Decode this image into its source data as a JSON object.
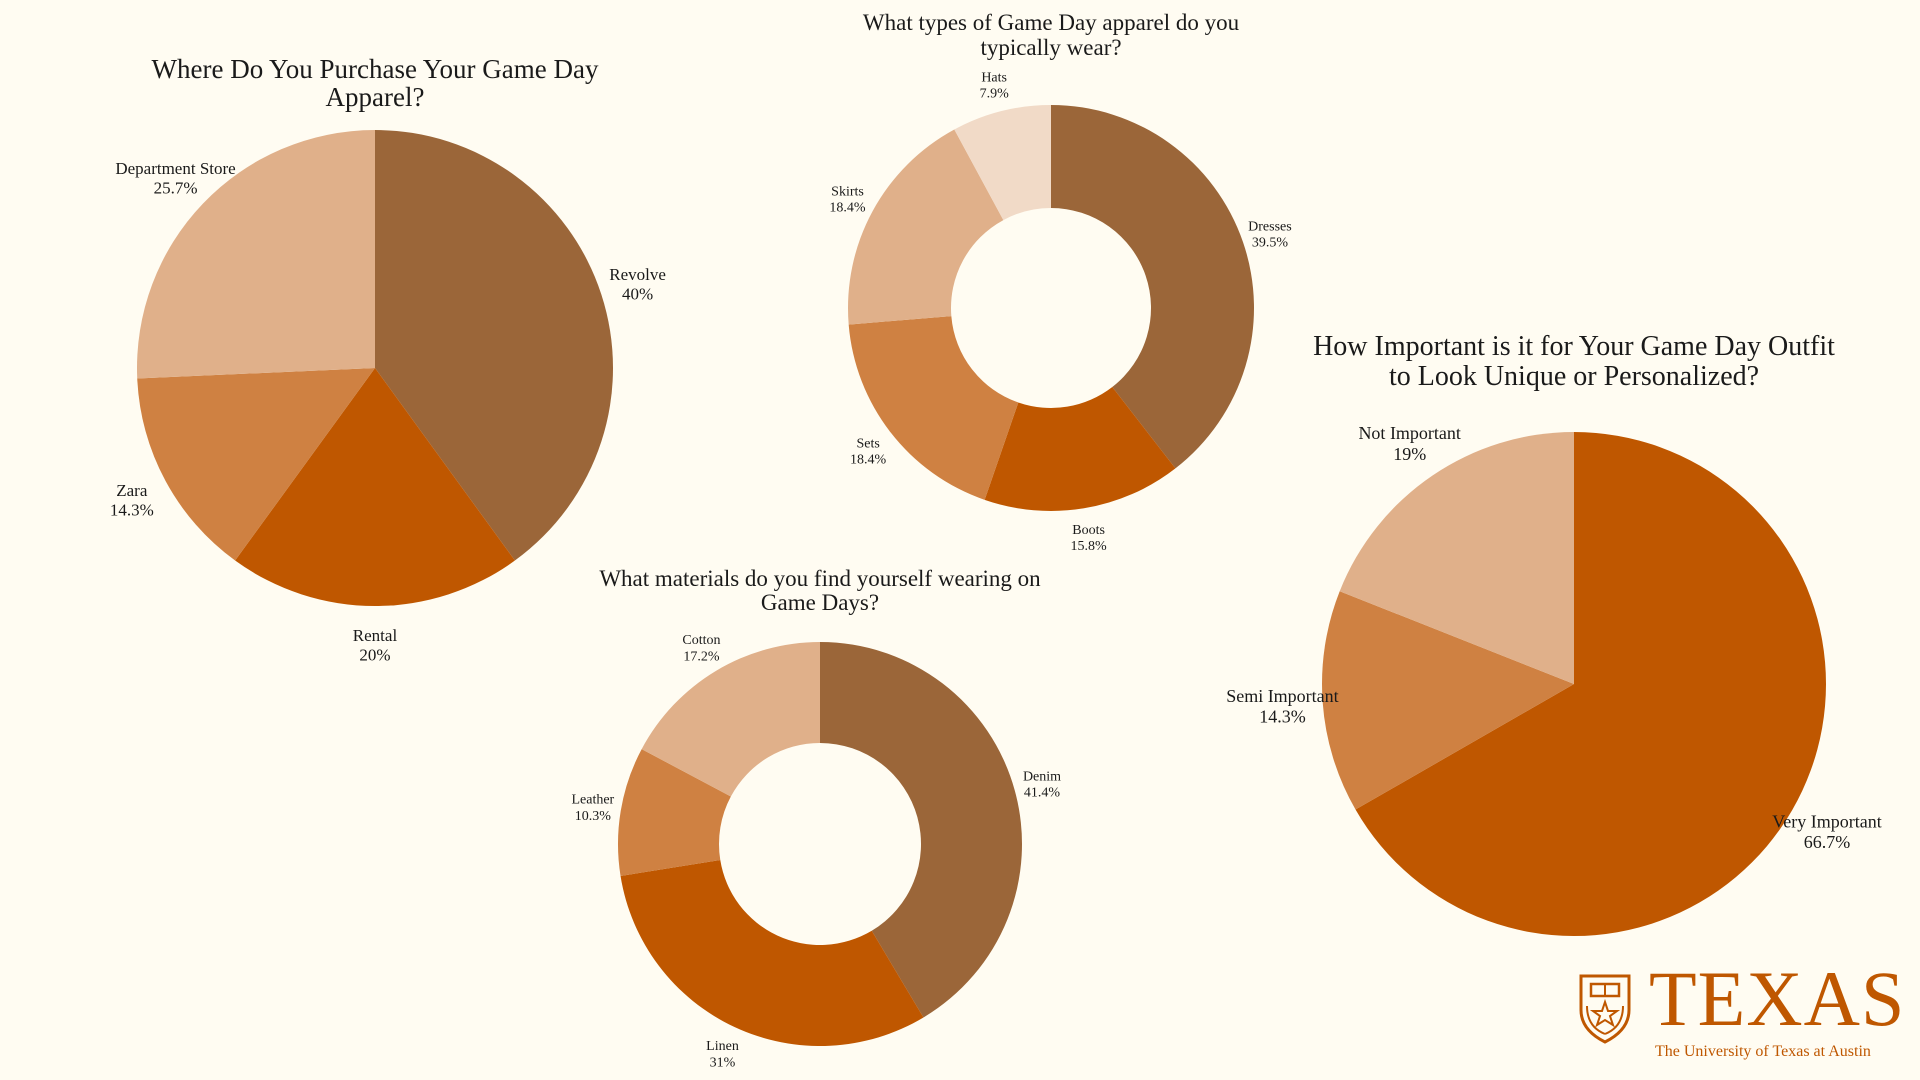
{
  "colors": {
    "dark_brown": "#9b6639",
    "burnt_orange": "#bf5700",
    "mid_orange": "#cf8142",
    "tan": "#e0b08a",
    "pale": "#f1dac7",
    "background": "#fffcf2",
    "brand": "#bf5700"
  },
  "chart_data": [
    {
      "id": "purchase",
      "type": "pie",
      "title": [
        "Where Do You Purchase Your Game Day",
        "Apparel?"
      ],
      "slices": [
        {
          "label": "Revolve",
          "value": 40,
          "display": "40%",
          "color": "#9b6639"
        },
        {
          "label": "Rental",
          "value": 20,
          "display": "20%",
          "color": "#bf5700"
        },
        {
          "label": "Zara",
          "value": 14.3,
          "display": "14.3%",
          "color": "#cf8142"
        },
        {
          "label": "Department Store",
          "value": 25.7,
          "display": "25.7%",
          "color": "#e0b08a"
        }
      ]
    },
    {
      "id": "apparel",
      "type": "pie",
      "donut": true,
      "title": [
        "What types of  Game Day apparel do you",
        "typically wear?"
      ],
      "slices": [
        {
          "label": "Dresses",
          "value": 39.5,
          "display": "39.5%",
          "color": "#9b6639"
        },
        {
          "label": "Boots",
          "value": 15.8,
          "display": "15.8%",
          "color": "#bf5700"
        },
        {
          "label": "Sets",
          "value": 18.4,
          "display": "18.4%",
          "color": "#cf8142"
        },
        {
          "label": "Skirts",
          "value": 18.4,
          "display": "18.4%",
          "color": "#e0b08a"
        },
        {
          "label": "Hats",
          "value": 7.9,
          "display": "7.9%",
          "color": "#f1dac7"
        }
      ]
    },
    {
      "id": "materials",
      "type": "pie",
      "donut": true,
      "title": [
        "What materials do you find yourself  wearing on",
        "Game Days?"
      ],
      "slices": [
        {
          "label": "Denim",
          "value": 41.4,
          "display": "41.4%",
          "color": "#9b6639"
        },
        {
          "label": "Linen",
          "value": 31,
          "display": "31%",
          "color": "#bf5700"
        },
        {
          "label": "Leather",
          "value": 10.3,
          "display": "10.3%",
          "color": "#cf8142"
        },
        {
          "label": "Cotton",
          "value": 17.2,
          "display": "17.2%",
          "color": "#e0b08a"
        }
      ]
    },
    {
      "id": "importance",
      "type": "pie",
      "title": [
        "How Important is it for Your Game Day Outfit",
        "to Look Unique or Personalized?"
      ],
      "slices": [
        {
          "label": "Very Important",
          "value": 66.7,
          "display": "66.7%",
          "color": "#bf5700"
        },
        {
          "label": "Semi Important",
          "value": 14.3,
          "display": "14.3%",
          "color": "#cf8142"
        },
        {
          "label": "Not Important",
          "value": 19,
          "display": "19%",
          "color": "#e0b08a"
        }
      ]
    }
  ],
  "logo": {
    "wordmark": "TEXAS",
    "subtitle": "The University of Texas at Austin"
  }
}
